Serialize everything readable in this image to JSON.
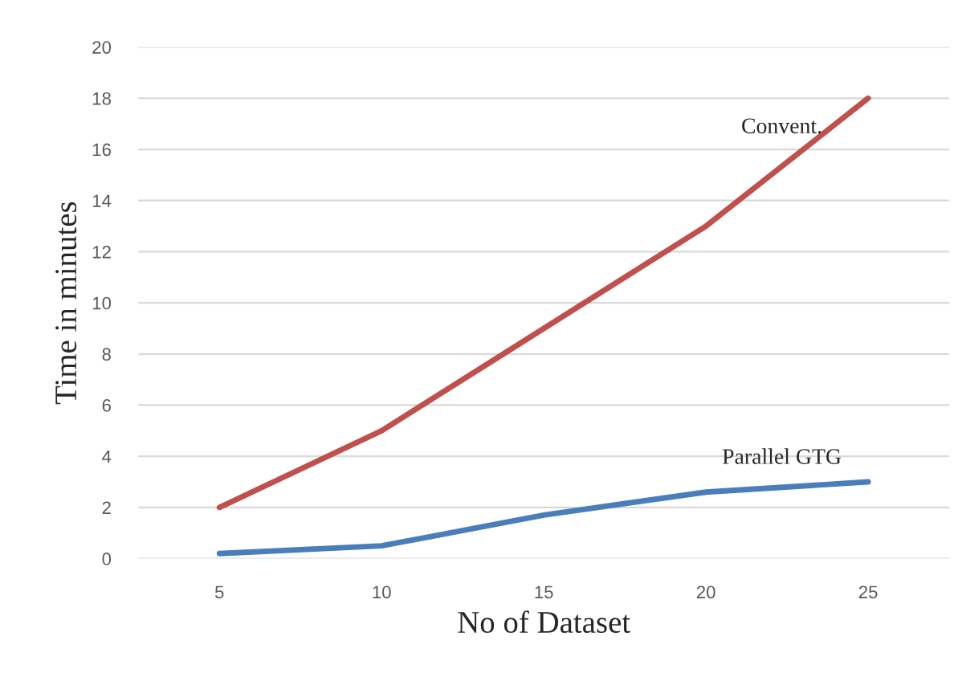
{
  "chart_data": {
    "type": "line",
    "xlabel": "No of Dataset",
    "ylabel": "Time in minutes",
    "categories": [
      "5",
      "10",
      "15",
      "20",
      "25"
    ],
    "series": [
      {
        "name": "Convent.",
        "color": "#c0504d",
        "values": [
          2,
          5,
          9,
          13,
          18
        ]
      },
      {
        "name": "Parallel GTG",
        "color": "#4a7ebb",
        "values": [
          0.2,
          0.5,
          1.7,
          2.6,
          3.0
        ]
      }
    ],
    "ylim": [
      0,
      20
    ],
    "yticks": [
      0,
      2,
      4,
      6,
      8,
      10,
      12,
      14,
      16,
      18,
      20
    ],
    "grid": "y",
    "legend": false,
    "marker": "none",
    "line_style": "solid"
  }
}
